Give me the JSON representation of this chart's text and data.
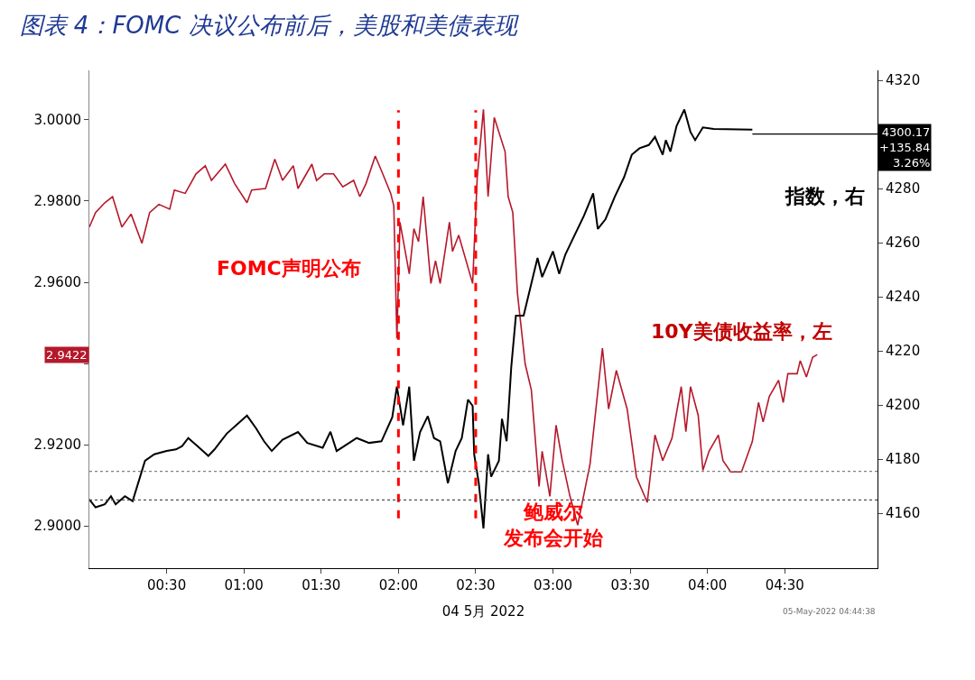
{
  "chart_data": {
    "type": "line",
    "title": "图表 4：FOMC 决议公布前后，美股和美债表现",
    "xlabel": "04 5月 2022",
    "xlim": [
      0,
      5.1
    ],
    "xticks": [
      {
        "value": 0.5,
        "label": "00:30"
      },
      {
        "value": 1.0,
        "label": "01:00"
      },
      {
        "value": 1.5,
        "label": "01:30"
      },
      {
        "value": 2.0,
        "label": "02:00"
      },
      {
        "value": 2.5,
        "label": "02:30"
      },
      {
        "value": 3.0,
        "label": "03:00"
      },
      {
        "value": 3.5,
        "label": "03:30"
      },
      {
        "value": 4.0,
        "label": "04:00"
      },
      {
        "value": 4.5,
        "label": "04:30"
      }
    ],
    "ylim": [
      2.8896,
      3.0122
    ],
    "yticks": [
      {
        "value": 2.9,
        "label": "2.9000"
      },
      {
        "value": 2.92,
        "label": "2.9200"
      },
      {
        "value": 2.94,
        "label": null
      },
      {
        "value": 2.96,
        "label": "2.9600"
      },
      {
        "value": 2.98,
        "label": "2.9800"
      },
      {
        "value": 3.0,
        "label": "3.0000"
      }
    ],
    "y2lim": [
      4139.7,
      4323.7
    ],
    "y2ticks": [
      4160,
      4180,
      4200,
      4220,
      4240,
      4260,
      4280,
      4320
    ],
    "marker": "none",
    "line_style": "solid",
    "series": [
      {
        "color": "#b5182b",
        "x": [
          0.0,
          0.04,
          0.1,
          0.15,
          0.21,
          0.27,
          0.34,
          0.39,
          0.45,
          0.52,
          0.55,
          0.62,
          0.69,
          0.75,
          0.79,
          0.88,
          0.94,
          1.02,
          1.05,
          1.14,
          1.2,
          1.25,
          1.32,
          1.35,
          1.44,
          1.47,
          1.52,
          1.58,
          1.64,
          1.71,
          1.75,
          1.79,
          1.85,
          1.89,
          1.95,
          1.97,
          1.99,
          2.01,
          2.07,
          2.1,
          2.13,
          2.16,
          2.21,
          2.24,
          2.27,
          2.33,
          2.35,
          2.39,
          2.48,
          2.51,
          2.55,
          2.58,
          2.62,
          2.69,
          2.71,
          2.74,
          2.77,
          2.82,
          2.86,
          2.91,
          2.93,
          2.98,
          3.02,
          3.06,
          3.11,
          3.16,
          3.24,
          3.32,
          3.36,
          3.41,
          3.48,
          3.54,
          3.61,
          3.66,
          3.71,
          3.77,
          3.83,
          3.86,
          3.89,
          3.94,
          3.97,
          4.01,
          4.07,
          4.1,
          4.15,
          4.22,
          4.29,
          4.33,
          4.36,
          4.4,
          4.46,
          4.49,
          4.52,
          4.58,
          4.6,
          4.64,
          4.68,
          4.71
        ],
        "values": [
          2.9736,
          2.9772,
          2.9796,
          2.9811,
          2.9736,
          2.9768,
          2.9696,
          2.9772,
          2.9792,
          2.978,
          2.9827,
          2.9819,
          2.9867,
          2.9887,
          2.9851,
          2.9891,
          2.9843,
          2.9796,
          2.9827,
          2.9831,
          2.9903,
          2.9851,
          2.9887,
          2.9831,
          2.9891,
          2.9851,
          2.9867,
          2.9867,
          2.9835,
          2.9851,
          2.9811,
          2.9843,
          2.9911,
          2.9875,
          2.9819,
          2.9788,
          2.9462,
          2.9748,
          2.9621,
          2.9732,
          2.97,
          2.9811,
          2.9597,
          2.9653,
          2.9597,
          2.9748,
          2.9676,
          2.9716,
          2.9597,
          2.9859,
          3.0026,
          2.9811,
          3.0006,
          2.9922,
          2.9811,
          2.9772,
          2.9573,
          2.9399,
          2.9335,
          2.9097,
          2.9184,
          2.9073,
          2.9248,
          2.9161,
          2.9073,
          2.9002,
          2.9153,
          2.9438,
          2.9288,
          2.9383,
          2.9288,
          2.9121,
          2.9058,
          2.9224,
          2.9161,
          2.9216,
          2.9343,
          2.9232,
          2.9343,
          2.9272,
          2.9137,
          2.9184,
          2.9224,
          2.9161,
          2.9133,
          2.9133,
          2.9208,
          2.9304,
          2.9256,
          2.9319,
          2.9359,
          2.9304,
          2.9375,
          2.9375,
          2.9407,
          2.9367,
          2.9415,
          2.9422
        ]
      },
      {
        "color": "#000000",
        "axis": "y2",
        "x": [
          0.0,
          0.04,
          0.1,
          0.14,
          0.17,
          0.23,
          0.28,
          0.36,
          0.42,
          0.5,
          0.56,
          0.6,
          0.64,
          0.7,
          0.77,
          0.81,
          0.85,
          0.89,
          0.95,
          1.02,
          1.08,
          1.13,
          1.18,
          1.25,
          1.35,
          1.41,
          1.51,
          1.56,
          1.6,
          1.73,
          1.81,
          1.89,
          1.96,
          1.99,
          2.03,
          2.07,
          2.1,
          2.14,
          2.19,
          2.23,
          2.27,
          2.32,
          2.37,
          2.41,
          2.45,
          2.48,
          2.49,
          2.52,
          2.55,
          2.58,
          2.6,
          2.65,
          2.67,
          2.7,
          2.73,
          2.76,
          2.81,
          2.87,
          2.9,
          2.93,
          3.0,
          3.04,
          3.08,
          3.12,
          3.2,
          3.26,
          3.29,
          3.34,
          3.4,
          3.46,
          3.51,
          3.56,
          3.62,
          3.66,
          3.71,
          3.73,
          3.76,
          3.8,
          3.85,
          3.89,
          3.92,
          3.97,
          4.04,
          4.29
        ],
        "values": [
          4165.1,
          4162.2,
          4163.3,
          4166.3,
          4163.3,
          4166.3,
          4164.5,
          4179.4,
          4181.8,
          4183.0,
          4183.6,
          4184.8,
          4187.8,
          4184.8,
          4181.2,
          4183.6,
          4186.6,
          4189.5,
          4192.5,
          4196.1,
          4191.3,
          4186.6,
          4183.0,
          4187.2,
          4190.0,
          4186.0,
          4184.2,
          4190.1,
          4183.0,
          4187.8,
          4186.0,
          4186.6,
          4195.5,
          4206.8,
          4192.5,
          4206.8,
          4179.4,
          4190.0,
          4195.9,
          4187.8,
          4186.6,
          4171.1,
          4183.0,
          4187.8,
          4202.0,
          4199.7,
          4181.8,
          4171.1,
          4154.4,
          4181.8,
          4173.5,
          4179.4,
          4194.9,
          4186.6,
          4214.0,
          4233.0,
          4233.0,
          4247.3,
          4254.4,
          4247.3,
          4256.8,
          4248.5,
          4255.6,
          4260.4,
          4269.9,
          4278.2,
          4265.1,
          4268.7,
          4277.0,
          4284.2,
          4292.5,
          4294.9,
          4296.1,
          4299.1,
          4292.5,
          4297.9,
          4293.7,
          4303.2,
          4309.2,
          4300.9,
          4297.9,
          4302.6,
          4302.0,
          4301.8
        ]
      }
    ],
    "ref_lines": [
      {
        "axis": "x",
        "value": 2.0,
        "color": "#ff0000",
        "line_style": "dashed"
      },
      {
        "axis": "x",
        "value": 2.5,
        "color": "#ff0000",
        "line_style": "dashed"
      },
      {
        "axis": "y2",
        "value": 4175.48,
        "color": "#808080",
        "line_style": "dotted"
      },
      {
        "axis": "y",
        "value": 2.9064,
        "color": "#505050",
        "line_style": "dotted"
      },
      {
        "axis": "y2",
        "value": 4300.17,
        "label": "4300.17\n+135.84\n3.26%",
        "color": "#000000",
        "line_style": "solid"
      }
    ],
    "annotations": [
      "FOMC声明公布",
      "鲍威尔发布会开始",
      "10Y美债收益率，左",
      "指数，右",
      "2.9422",
      "05-May-2022 04:44:38"
    ]
  }
}
